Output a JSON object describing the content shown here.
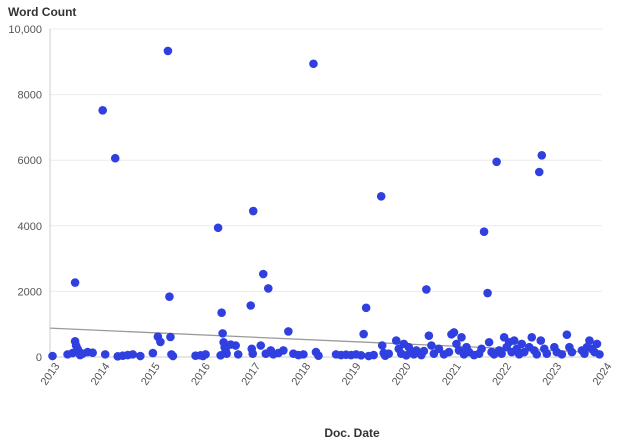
{
  "chart_data": {
    "type": "scatter",
    "ylabel": "Word Count",
    "xlabel": "Doc. Date",
    "xlim": [
      2013,
      2024
    ],
    "ylim": [
      0,
      10000
    ],
    "yticks": [
      {
        "value": 0,
        "label": "0"
      },
      {
        "value": 2000,
        "label": "2000"
      },
      {
        "value": 4000,
        "label": "4000"
      },
      {
        "value": 6000,
        "label": "6000"
      },
      {
        "value": 8000,
        "label": "8000"
      },
      {
        "value": 10000,
        "label": "10,000"
      }
    ],
    "xticks": [
      {
        "value": 2013,
        "label": "2013"
      },
      {
        "value": 2014,
        "label": "2014"
      },
      {
        "value": 2015,
        "label": "2015"
      },
      {
        "value": 2016,
        "label": "2016"
      },
      {
        "value": 2017,
        "label": "2017"
      },
      {
        "value": 2018,
        "label": "2018"
      },
      {
        "value": 2019,
        "label": "2019"
      },
      {
        "value": 2020,
        "label": "2020"
      },
      {
        "value": 2021,
        "label": "2021"
      },
      {
        "value": 2022,
        "label": "2022"
      },
      {
        "value": 2023,
        "label": "2023"
      },
      {
        "value": 2024,
        "label": "2024"
      }
    ],
    "grid": true,
    "trendline": {
      "x": [
        2013,
        2024
      ],
      "y": [
        880,
        130
      ]
    },
    "points": [
      {
        "x": 2013.05,
        "y": 30
      },
      {
        "x": 2013.35,
        "y": 80
      },
      {
        "x": 2013.45,
        "y": 120
      },
      {
        "x": 2013.5,
        "y": 2270
      },
      {
        "x": 2013.5,
        "y": 480
      },
      {
        "x": 2013.52,
        "y": 350
      },
      {
        "x": 2013.55,
        "y": 250
      },
      {
        "x": 2013.58,
        "y": 160
      },
      {
        "x": 2013.6,
        "y": 60
      },
      {
        "x": 2013.65,
        "y": 100
      },
      {
        "x": 2013.75,
        "y": 150
      },
      {
        "x": 2013.85,
        "y": 130
      },
      {
        "x": 2014.05,
        "y": 7520
      },
      {
        "x": 2014.1,
        "y": 80
      },
      {
        "x": 2014.3,
        "y": 6060
      },
      {
        "x": 2014.35,
        "y": 20
      },
      {
        "x": 2014.45,
        "y": 40
      },
      {
        "x": 2014.55,
        "y": 60
      },
      {
        "x": 2014.65,
        "y": 80
      },
      {
        "x": 2014.8,
        "y": 30
      },
      {
        "x": 2015.05,
        "y": 120
      },
      {
        "x": 2015.15,
        "y": 620
      },
      {
        "x": 2015.2,
        "y": 460
      },
      {
        "x": 2015.35,
        "y": 9330
      },
      {
        "x": 2015.38,
        "y": 1840
      },
      {
        "x": 2015.4,
        "y": 610
      },
      {
        "x": 2015.42,
        "y": 80
      },
      {
        "x": 2015.45,
        "y": 30
      },
      {
        "x": 2015.9,
        "y": 40
      },
      {
        "x": 2016.0,
        "y": 50
      },
      {
        "x": 2016.05,
        "y": 30
      },
      {
        "x": 2016.1,
        "y": 80
      },
      {
        "x": 2016.35,
        "y": 3940
      },
      {
        "x": 2016.42,
        "y": 1350
      },
      {
        "x": 2016.44,
        "y": 720
      },
      {
        "x": 2016.46,
        "y": 450
      },
      {
        "x": 2016.48,
        "y": 300
      },
      {
        "x": 2016.5,
        "y": 200
      },
      {
        "x": 2016.52,
        "y": 100
      },
      {
        "x": 2016.4,
        "y": 50
      },
      {
        "x": 2016.6,
        "y": 380
      },
      {
        "x": 2016.7,
        "y": 350
      },
      {
        "x": 2016.75,
        "y": 80
      },
      {
        "x": 2017.0,
        "y": 1570
      },
      {
        "x": 2017.05,
        "y": 4450
      },
      {
        "x": 2017.02,
        "y": 250
      },
      {
        "x": 2017.04,
        "y": 100
      },
      {
        "x": 2017.2,
        "y": 350
      },
      {
        "x": 2017.25,
        "y": 2530
      },
      {
        "x": 2017.3,
        "y": 100
      },
      {
        "x": 2017.35,
        "y": 2090
      },
      {
        "x": 2017.4,
        "y": 200
      },
      {
        "x": 2017.45,
        "y": 80
      },
      {
        "x": 2017.55,
        "y": 120
      },
      {
        "x": 2017.65,
        "y": 200
      },
      {
        "x": 2017.75,
        "y": 780
      },
      {
        "x": 2017.85,
        "y": 100
      },
      {
        "x": 2017.95,
        "y": 60
      },
      {
        "x": 2018.05,
        "y": 80
      },
      {
        "x": 2018.25,
        "y": 8940
      },
      {
        "x": 2018.3,
        "y": 150
      },
      {
        "x": 2018.35,
        "y": 40
      },
      {
        "x": 2018.7,
        "y": 80
      },
      {
        "x": 2018.8,
        "y": 60
      },
      {
        "x": 2018.9,
        "y": 70
      },
      {
        "x": 2019.0,
        "y": 60
      },
      {
        "x": 2019.1,
        "y": 80
      },
      {
        "x": 2019.2,
        "y": 50
      },
      {
        "x": 2019.25,
        "y": 700
      },
      {
        "x": 2019.3,
        "y": 1500
      },
      {
        "x": 2019.35,
        "y": 30
      },
      {
        "x": 2019.45,
        "y": 60
      },
      {
        "x": 2019.6,
        "y": 4900
      },
      {
        "x": 2019.62,
        "y": 350
      },
      {
        "x": 2019.65,
        "y": 120
      },
      {
        "x": 2019.68,
        "y": 40
      },
      {
        "x": 2019.75,
        "y": 100
      },
      {
        "x": 2019.9,
        "y": 500
      },
      {
        "x": 2019.95,
        "y": 250
      },
      {
        "x": 2020.0,
        "y": 100
      },
      {
        "x": 2020.05,
        "y": 400
      },
      {
        "x": 2020.1,
        "y": 50
      },
      {
        "x": 2020.15,
        "y": 300
      },
      {
        "x": 2020.2,
        "y": 150
      },
      {
        "x": 2020.25,
        "y": 80
      },
      {
        "x": 2020.3,
        "y": 200
      },
      {
        "x": 2020.4,
        "y": 60
      },
      {
        "x": 2020.45,
        "y": 180
      },
      {
        "x": 2020.5,
        "y": 2060
      },
      {
        "x": 2020.55,
        "y": 650
      },
      {
        "x": 2020.6,
        "y": 350
      },
      {
        "x": 2020.65,
        "y": 100
      },
      {
        "x": 2020.75,
        "y": 250
      },
      {
        "x": 2020.85,
        "y": 80
      },
      {
        "x": 2020.95,
        "y": 150
      },
      {
        "x": 2021.0,
        "y": 690
      },
      {
        "x": 2021.05,
        "y": 750
      },
      {
        "x": 2021.1,
        "y": 400
      },
      {
        "x": 2021.15,
        "y": 200
      },
      {
        "x": 2021.2,
        "y": 600
      },
      {
        "x": 2021.25,
        "y": 80
      },
      {
        "x": 2021.3,
        "y": 300
      },
      {
        "x": 2021.35,
        "y": 150
      },
      {
        "x": 2021.45,
        "y": 60
      },
      {
        "x": 2021.55,
        "y": 100
      },
      {
        "x": 2021.6,
        "y": 250
      },
      {
        "x": 2021.65,
        "y": 3820
      },
      {
        "x": 2021.72,
        "y": 1950
      },
      {
        "x": 2021.75,
        "y": 450
      },
      {
        "x": 2021.8,
        "y": 150
      },
      {
        "x": 2021.85,
        "y": 80
      },
      {
        "x": 2021.9,
        "y": 5950
      },
      {
        "x": 2021.95,
        "y": 200
      },
      {
        "x": 2022.0,
        "y": 100
      },
      {
        "x": 2022.05,
        "y": 600
      },
      {
        "x": 2022.1,
        "y": 300
      },
      {
        "x": 2022.15,
        "y": 450
      },
      {
        "x": 2022.2,
        "y": 150
      },
      {
        "x": 2022.25,
        "y": 500
      },
      {
        "x": 2022.3,
        "y": 250
      },
      {
        "x": 2022.35,
        "y": 80
      },
      {
        "x": 2022.4,
        "y": 400
      },
      {
        "x": 2022.45,
        "y": 150
      },
      {
        "x": 2022.55,
        "y": 300
      },
      {
        "x": 2022.6,
        "y": 600
      },
      {
        "x": 2022.65,
        "y": 200
      },
      {
        "x": 2022.7,
        "y": 80
      },
      {
        "x": 2022.75,
        "y": 5640
      },
      {
        "x": 2022.8,
        "y": 6150
      },
      {
        "x": 2022.78,
        "y": 500
      },
      {
        "x": 2022.85,
        "y": 250
      },
      {
        "x": 2022.9,
        "y": 100
      },
      {
        "x": 2023.05,
        "y": 300
      },
      {
        "x": 2023.1,
        "y": 150
      },
      {
        "x": 2023.2,
        "y": 80
      },
      {
        "x": 2023.3,
        "y": 680
      },
      {
        "x": 2023.35,
        "y": 300
      },
      {
        "x": 2023.4,
        "y": 150
      },
      {
        "x": 2023.6,
        "y": 200
      },
      {
        "x": 2023.65,
        "y": 100
      },
      {
        "x": 2023.7,
        "y": 300
      },
      {
        "x": 2023.75,
        "y": 500
      },
      {
        "x": 2023.8,
        "y": 250
      },
      {
        "x": 2023.85,
        "y": 150
      },
      {
        "x": 2023.9,
        "y": 400
      },
      {
        "x": 2023.95,
        "y": 80
      }
    ]
  }
}
